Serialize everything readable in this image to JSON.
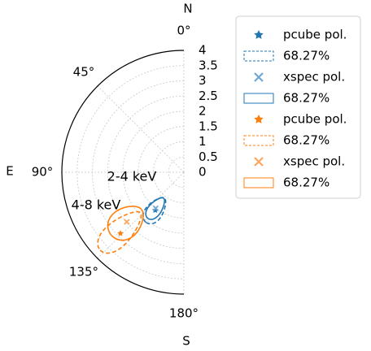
{
  "chart_data": {
    "type": "polar",
    "compass": [
      "N",
      "E",
      "S"
    ],
    "rlim": [
      0,
      4
    ],
    "rticks": [
      0,
      0.5,
      1,
      1.5,
      2,
      2.5,
      3,
      3.5,
      4
    ],
    "thetalim": [
      0,
      180
    ],
    "thetaticks": [
      {
        "value": 0,
        "label": "0°"
      },
      {
        "value": 45,
        "label": "45°"
      },
      {
        "value": 90,
        "label": "90°"
      },
      {
        "value": 135,
        "label": "135°"
      },
      {
        "value": 180,
        "label": "180°"
      }
    ],
    "grid": true,
    "annotations": [
      {
        "text": "2-4 keV",
        "color": "#1f77b4"
      },
      {
        "text": "4-8 keV",
        "color": "#ff7f0e"
      }
    ],
    "legend": "outside-upper-right",
    "series": [
      {
        "name": "pcube pol.",
        "color": "#1f77b4",
        "marker": "star",
        "r": 1.56,
        "theta": 143
      },
      {
        "name": "68.27%",
        "color": "#1f77b4",
        "linestyle": "dashed",
        "r": 1.56,
        "theta": 143,
        "dr": 0.5,
        "dtheta": 10
      },
      {
        "name": "xspec pol.",
        "color": "#6fa6d2",
        "marker": "x",
        "r": 1.5,
        "theta": 142
      },
      {
        "name": "68.27%",
        "color": "#1f77b4",
        "linestyle": "solid",
        "r": 1.5,
        "theta": 142,
        "dr": 0.42,
        "dtheta": 8
      },
      {
        "name": "pcube pol.",
        "color": "#ff7f0e",
        "marker": "star",
        "r": 2.89,
        "theta": 134
      },
      {
        "name": "68.27%",
        "color": "#ff7f0e",
        "linestyle": "dashed",
        "r": 2.85,
        "theta": 133,
        "dr": 0.9,
        "dtheta": 8
      },
      {
        "name": "xspec pol.",
        "color": "#ffa55c",
        "marker": "x",
        "r": 2.48,
        "theta": 131
      },
      {
        "name": "68.27%",
        "color": "#ff7f0e",
        "linestyle": "solid",
        "r": 2.5,
        "theta": 131,
        "dr": 0.65,
        "dtheta": 11
      }
    ]
  }
}
